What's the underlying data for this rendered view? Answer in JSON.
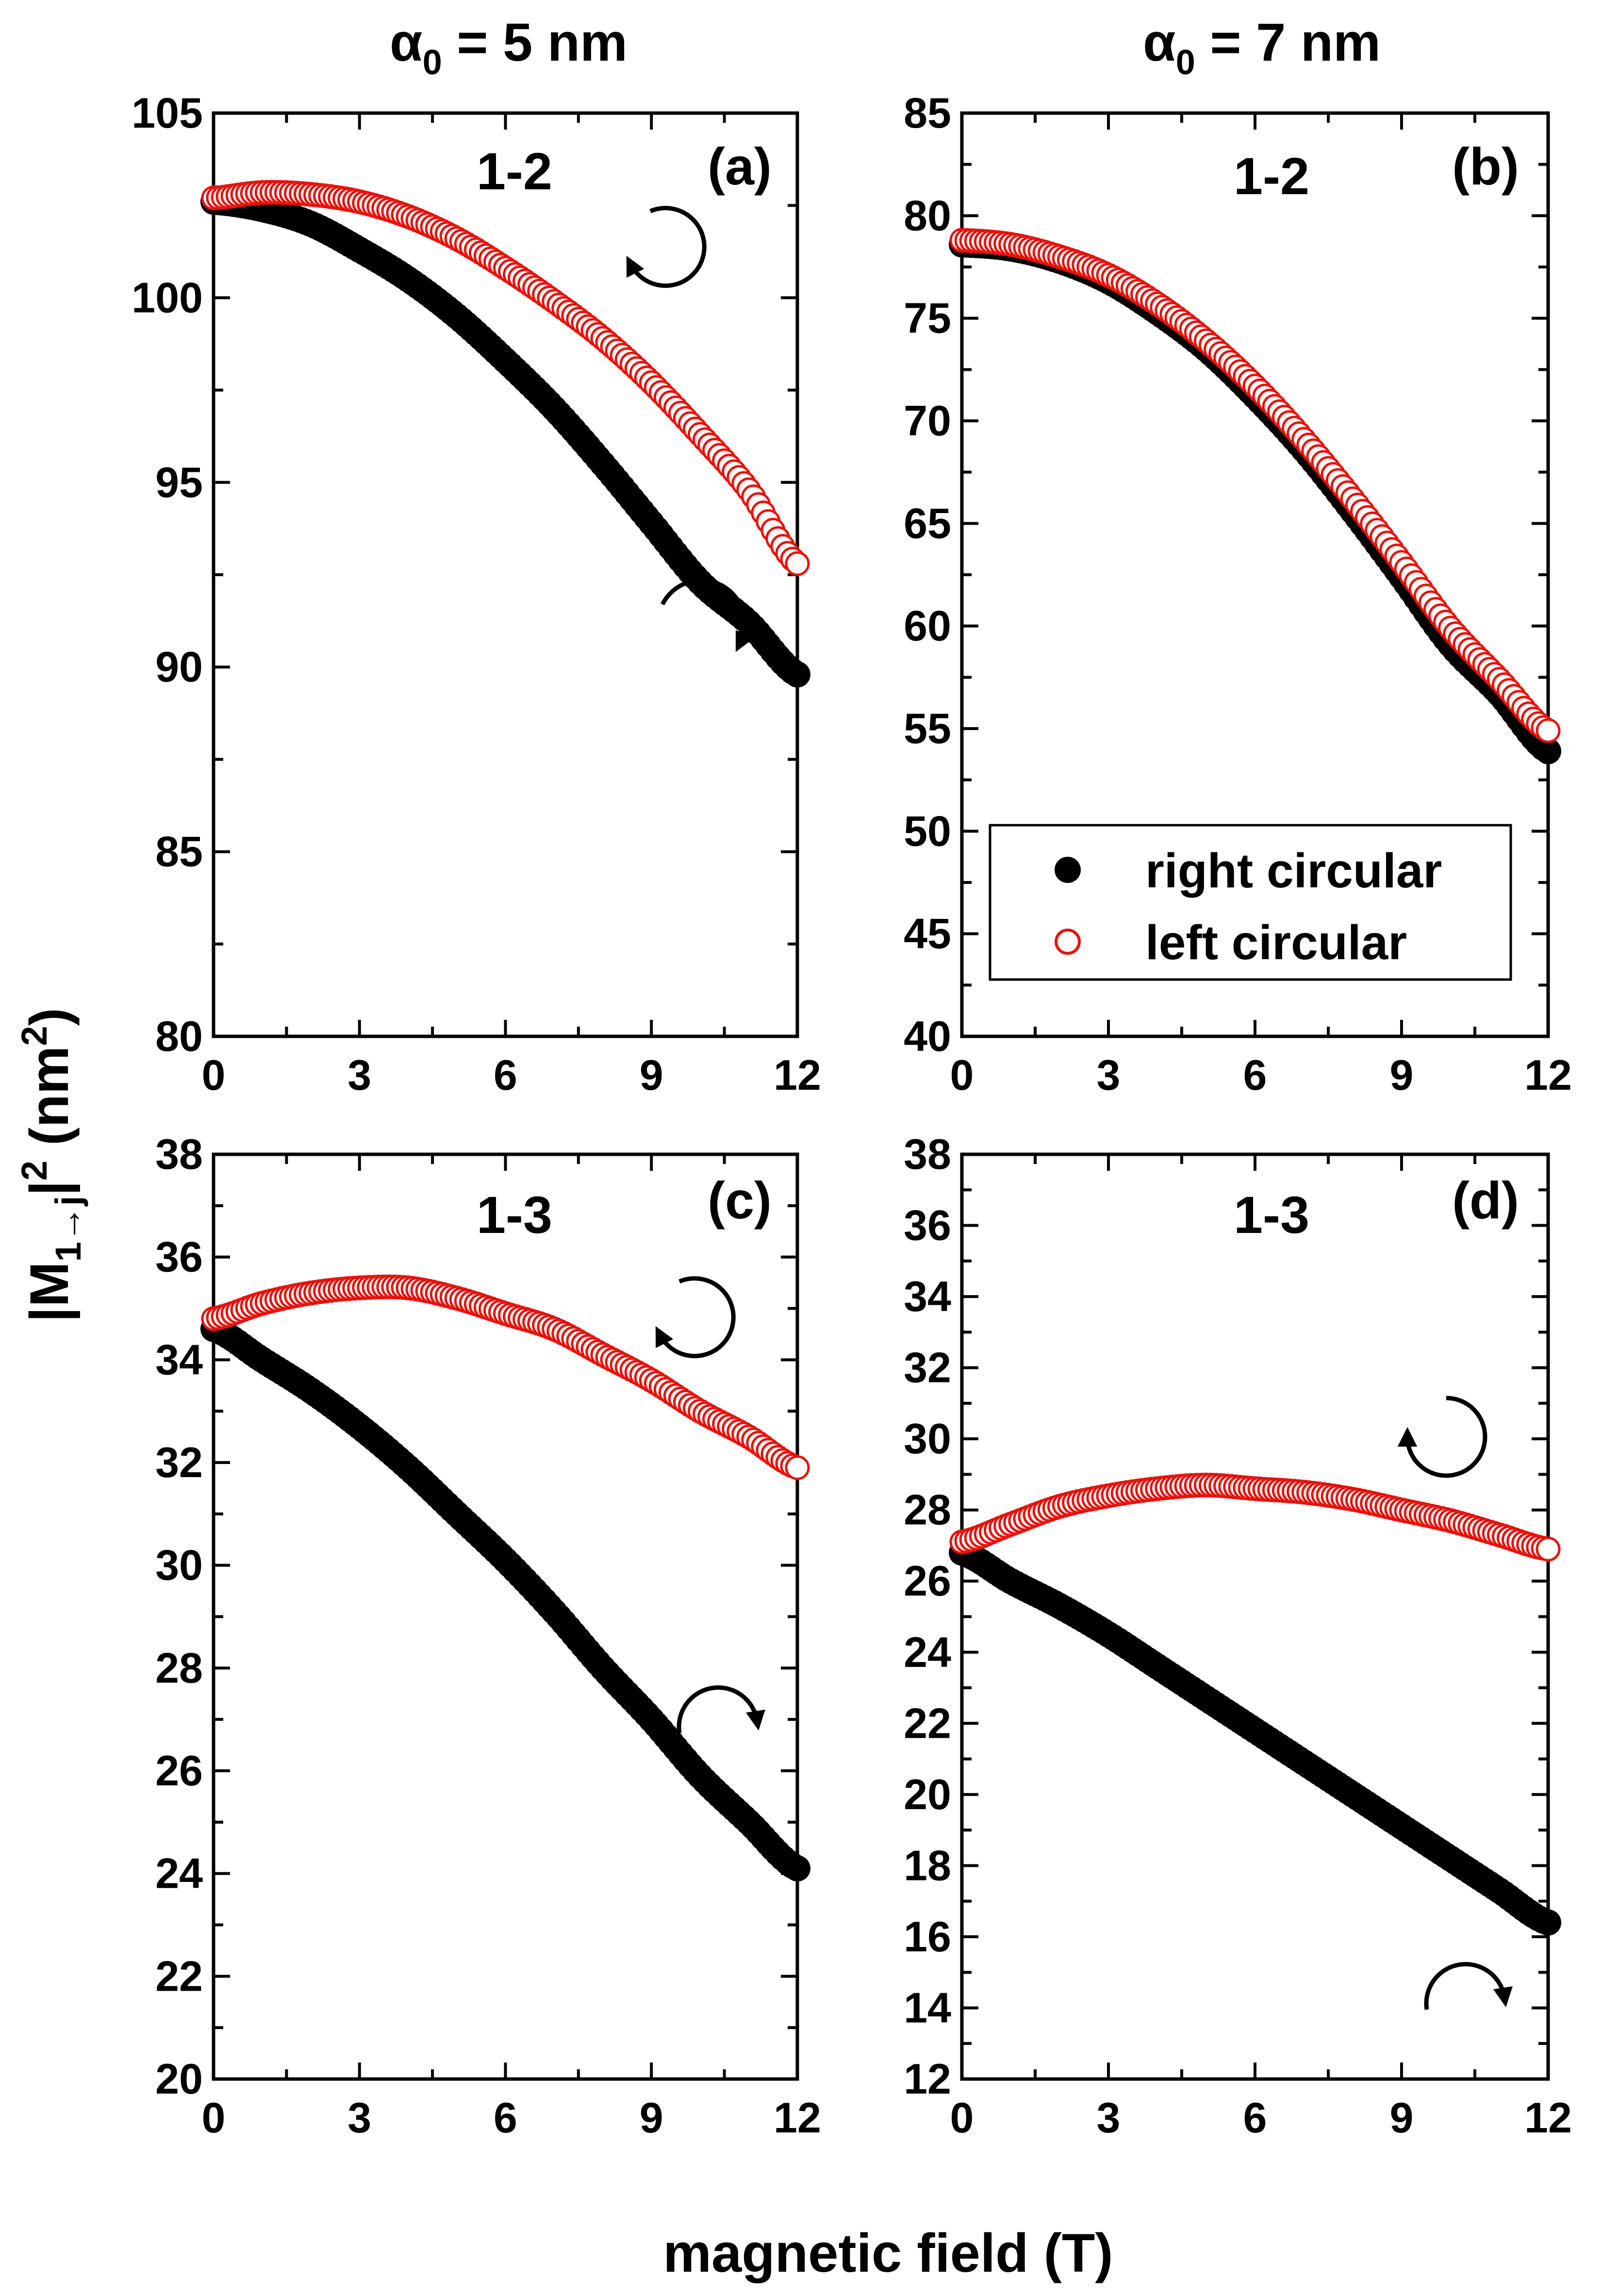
{
  "figure": {
    "column_titles": [
      {
        "symbol": "α",
        "subscript": "0",
        "rest": " = 5 nm"
      },
      {
        "symbol": "α",
        "subscript": "0",
        "rest": " = 7 nm"
      }
    ],
    "ylabel": {
      "part1": "|M",
      "sub": "1→j",
      "part2": "|",
      "sup": "2",
      "part3": " (nm",
      "sup2": "2",
      "part4": ")"
    },
    "xlabel": "magnetic field (T)",
    "legend": {
      "right_label": "right circular",
      "left_label": "left circular"
    },
    "colors": {
      "right": "#000000",
      "left": "#e8120c",
      "axis": "#000000"
    }
  },
  "chart_data": [
    {
      "type": "scatter",
      "panel": "(a)",
      "transition": "1-2",
      "xlim": [
        0,
        12
      ],
      "ylim": [
        80,
        105
      ],
      "xticks": [
        0,
        3,
        6,
        9,
        12
      ],
      "yticks": [
        80,
        85,
        90,
        95,
        100,
        105
      ],
      "series": [
        {
          "name": "right circular",
          "marker": "filled-circle",
          "x": [
            0,
            1,
            2,
            3,
            4,
            5,
            6,
            7,
            8,
            9,
            10,
            11,
            12
          ],
          "y": [
            102.6,
            102.4,
            102.0,
            101.3,
            100.5,
            99.5,
            98.3,
            97.0,
            95.5,
            93.9,
            92.3,
            91.2,
            89.8
          ]
        },
        {
          "name": "left circular",
          "marker": "open-circle",
          "x": [
            0,
            1,
            2,
            3,
            4,
            5,
            6,
            7,
            8,
            9,
            10,
            11,
            12
          ],
          "y": [
            102.7,
            102.85,
            102.8,
            102.6,
            102.2,
            101.6,
            100.8,
            99.9,
            98.9,
            97.7,
            96.3,
            94.8,
            92.8
          ]
        }
      ],
      "annotations": [
        "counterclockwise arrow near left circular",
        "clockwise arrow near right circular"
      ]
    },
    {
      "type": "scatter",
      "panel": "(b)",
      "transition": "1-2",
      "xlim": [
        0,
        12
      ],
      "ylim": [
        40,
        85
      ],
      "xticks": [
        0,
        3,
        6,
        9,
        12
      ],
      "yticks": [
        40,
        45,
        50,
        55,
        60,
        65,
        70,
        75,
        80,
        85
      ],
      "legend_position": "lower-right",
      "series": [
        {
          "name": "right circular",
          "marker": "filled-circle",
          "x": [
            0,
            1,
            2,
            3,
            4,
            5,
            6,
            7,
            8,
            9,
            10,
            11,
            12
          ],
          "y": [
            78.6,
            78.4,
            77.8,
            76.8,
            75.3,
            73.5,
            71.2,
            68.6,
            65.6,
            62.4,
            59.1,
            56.7,
            53.9
          ]
        },
        {
          "name": "left circular",
          "marker": "open-circle",
          "x": [
            0,
            1,
            2,
            3,
            4,
            5,
            6,
            7,
            8,
            9,
            10,
            11,
            12
          ],
          "y": [
            78.8,
            78.6,
            78.0,
            77.1,
            75.7,
            73.9,
            71.7,
            69.1,
            66.2,
            63.1,
            59.9,
            57.4,
            54.9
          ]
        }
      ]
    },
    {
      "type": "scatter",
      "panel": "(c)",
      "transition": "1-3",
      "xlim": [
        0,
        12
      ],
      "ylim": [
        20,
        38
      ],
      "xticks": [
        0,
        3,
        6,
        9,
        12
      ],
      "yticks": [
        20,
        22,
        24,
        26,
        28,
        30,
        32,
        34,
        36,
        38
      ],
      "series": [
        {
          "name": "right circular",
          "marker": "filled-circle",
          "x": [
            0,
            1,
            2,
            3,
            4,
            5,
            6,
            7,
            8,
            9,
            10,
            11,
            12
          ],
          "y": [
            34.6,
            34.0,
            33.4,
            32.7,
            31.9,
            31.0,
            30.1,
            29.1,
            28.0,
            27.0,
            25.9,
            25.0,
            24.1
          ]
        },
        {
          "name": "left circular",
          "marker": "open-circle",
          "x": [
            0,
            1,
            2,
            3,
            4,
            5,
            6,
            7,
            8,
            9,
            10,
            11,
            12
          ],
          "y": [
            34.8,
            35.1,
            35.3,
            35.4,
            35.4,
            35.2,
            34.9,
            34.6,
            34.1,
            33.6,
            33.0,
            32.5,
            31.9
          ]
        }
      ],
      "annotations": [
        "counterclockwise arrow near left circular",
        "clockwise arrow near right circular"
      ]
    },
    {
      "type": "scatter",
      "panel": "(d)",
      "transition": "1-3",
      "xlim": [
        0,
        12
      ],
      "ylim": [
        12,
        38
      ],
      "xticks": [
        0,
        3,
        6,
        9,
        12
      ],
      "yticks": [
        12,
        14,
        16,
        18,
        20,
        22,
        24,
        26,
        28,
        30,
        32,
        34,
        36,
        38
      ],
      "series": [
        {
          "name": "right circular",
          "marker": "filled-circle",
          "x": [
            0,
            1,
            2,
            3,
            4,
            5,
            6,
            7,
            8,
            9,
            10,
            11,
            12
          ],
          "y": [
            26.8,
            26.0,
            25.3,
            24.5,
            23.6,
            22.7,
            21.8,
            20.9,
            20.0,
            19.1,
            18.2,
            17.3,
            16.4
          ]
        },
        {
          "name": "left circular",
          "marker": "open-circle",
          "x": [
            0,
            1,
            2,
            3,
            4,
            5,
            6,
            7,
            8,
            9,
            10,
            11,
            12
          ],
          "y": [
            27.1,
            27.6,
            28.1,
            28.4,
            28.6,
            28.7,
            28.6,
            28.5,
            28.3,
            28.0,
            27.7,
            27.3,
            26.9
          ]
        }
      ],
      "annotations": [
        "counterclockwise arrow near left circular",
        "clockwise arrow near right circular"
      ]
    }
  ]
}
